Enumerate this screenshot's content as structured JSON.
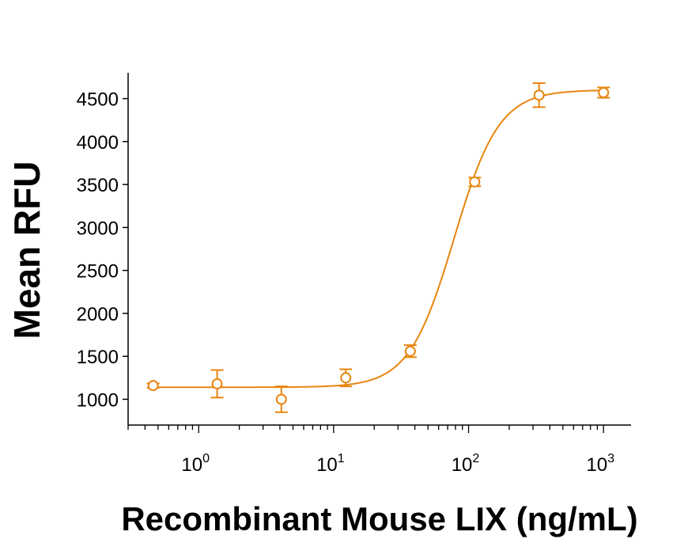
{
  "chart_data": {
    "type": "scatter",
    "title": "",
    "xlabel": "Recombinant Mouse LIX (ng/mL)",
    "ylabel": "Mean RFU",
    "xscale": "log10",
    "xlim": [
      0.3,
      1600
    ],
    "ylim": [
      700,
      4800
    ],
    "x_ticks": [
      {
        "base": "10",
        "exp": "0",
        "value": 1
      },
      {
        "base": "10",
        "exp": "1",
        "value": 10
      },
      {
        "base": "10",
        "exp": "2",
        "value": 100
      },
      {
        "base": "10",
        "exp": "3",
        "value": 1000
      }
    ],
    "y_ticks": [
      "1000",
      "1500",
      "2000",
      "2500",
      "3000",
      "3500",
      "4000",
      "4500"
    ],
    "color": "#E8850F",
    "grid": false,
    "series": [
      {
        "points": [
          {
            "x": 0.46,
            "y": 1160,
            "err": 25
          },
          {
            "x": 1.37,
            "y": 1180,
            "err": 160
          },
          {
            "x": 4.1,
            "y": 1000,
            "err": 150
          },
          {
            "x": 12.3,
            "y": 1250,
            "err": 100
          },
          {
            "x": 37,
            "y": 1560,
            "err": 70
          },
          {
            "x": 111,
            "y": 3530,
            "err": 50
          },
          {
            "x": 333,
            "y": 4540,
            "err": 140
          },
          {
            "x": 1000,
            "y": 4570,
            "err": 60
          }
        ]
      }
    ],
    "fit": {
      "model": "4PL",
      "bottom": 1140,
      "top": 4600,
      "ec50": 78,
      "hill": 2.6
    }
  }
}
